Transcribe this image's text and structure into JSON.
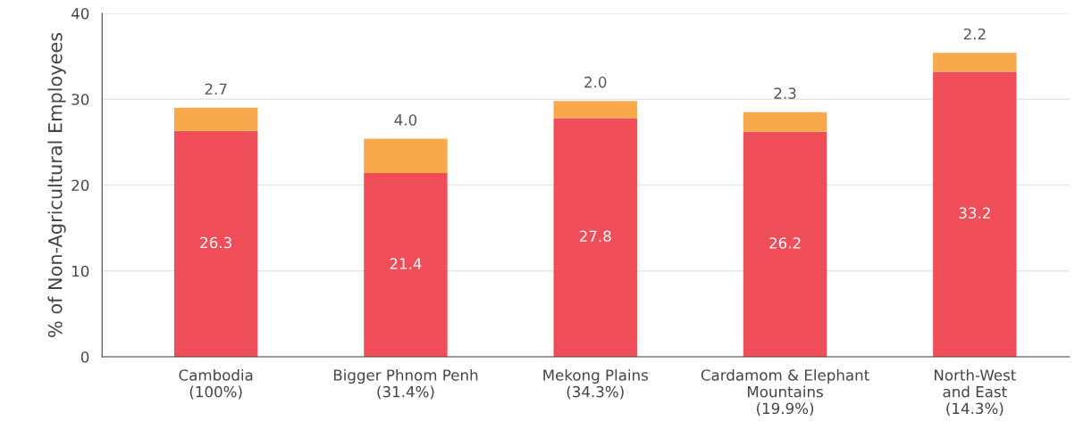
{
  "chart_data": {
    "type": "bar",
    "stacked": true,
    "ylabel": "% of Non-Agricultural Employees",
    "categories": [
      "Cambodia\n(100%)",
      "Bigger Phnom Penh\n(31.4%)",
      "Mekong Plains\n(34.3%)",
      "Cardamom & Elephant\nMountains\n(19.9%)",
      "North-West\nand East\n(14.3%)"
    ],
    "series": [
      {
        "color": "#ef4d57",
        "values": [
          26.3,
          21.4,
          27.8,
          26.2,
          33.2
        ],
        "value_labels": [
          "26.3",
          "21.4",
          "27.8",
          "26.2",
          "33.2"
        ]
      },
      {
        "color": "#f9a94b",
        "values": [
          2.7,
          4.0,
          2.0,
          2.3,
          2.2
        ],
        "value_labels": [
          "2.7",
          "4.0",
          "2.0",
          "2.3",
          "2.2"
        ]
      }
    ],
    "ylim": [
      0,
      40
    ],
    "yticks": [
      0,
      10,
      20,
      30,
      40
    ],
    "grid": "y",
    "legend": false
  }
}
